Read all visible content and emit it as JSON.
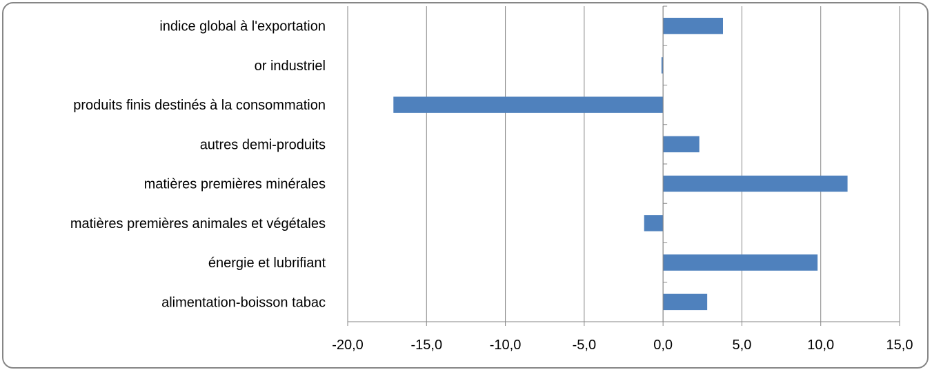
{
  "chart_data": {
    "type": "bar",
    "orientation": "horizontal",
    "title": "",
    "xlabel": "",
    "ylabel": "",
    "categories": [
      "indice global à l'exportation",
      "or industriel",
      "produits finis destinés à la consommation",
      "autres demi-produits",
      "matières premières minérales",
      "matières premières animales et végétales",
      "énergie et lubrifiant",
      "alimentation-boisson tabac"
    ],
    "values": [
      3.8,
      -0.1,
      -17.1,
      2.3,
      11.7,
      -1.2,
      9.8,
      2.8
    ],
    "xlim": [
      -20,
      15
    ],
    "xticks": [
      -20,
      -15,
      -10,
      -5,
      0,
      5,
      10,
      15
    ],
    "xtick_labels": [
      "-20,0",
      "-15,0",
      "-10,0",
      "-5,0",
      "0,0",
      "5,0",
      "10,0",
      "15,0"
    ],
    "bar_color": "#4F81BD",
    "grid": "vertical",
    "legend": "none"
  }
}
